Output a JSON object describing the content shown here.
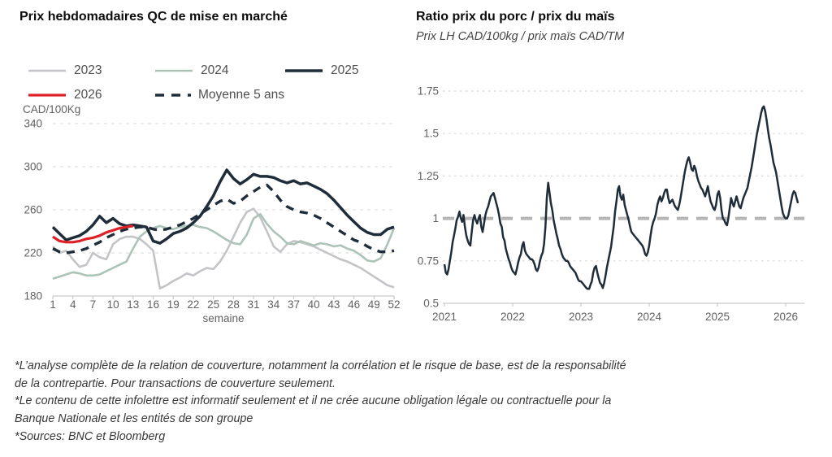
{
  "page": {
    "background": "#ffffff"
  },
  "footnotes": {
    "text": "*L’analyse complète de la relation de couverture, notamment la corrélation et le risque de base, est de la responsabilité\nde la contrepartie. Pour transactions de couverture seulement.\n*Le contenu de cette infolettre est informatif seulement et il ne crée aucune obligation légale ou contractuelle pour la\nBanque Nationale et les entités de son groupe\n*Sources: BNC et Bloomberg"
  },
  "chart_data": [
    {
      "type": "line",
      "title": "Prix hebdomadaires QC de mise en marché",
      "ylabel": "CAD/100Kg",
      "xlabel": "semaine",
      "ylim": [
        180,
        340
      ],
      "xlim": [
        1,
        52
      ],
      "y_ticks": [
        340,
        300,
        260,
        220,
        180
      ],
      "y_gridlines_dashed": [
        340,
        300,
        260,
        220
      ],
      "x_ticks": [
        1,
        4,
        7,
        10,
        13,
        16,
        19,
        22,
        25,
        28,
        31,
        34,
        37,
        40,
        43,
        46,
        49,
        52
      ],
      "grid": "horizontal-dashed",
      "legend_position": "top",
      "series": [
        {
          "name": "2023",
          "color": "#c4c4c8",
          "style": "solid",
          "width": 2.6,
          "start_week": 1,
          "values": [
            226,
            220,
            222,
            214,
            207,
            209,
            220,
            216,
            214,
            228,
            233,
            235,
            235,
            233,
            228,
            222,
            187,
            190,
            194,
            197,
            201,
            199,
            203,
            206,
            205,
            212,
            222,
            235,
            248,
            258,
            261,
            253,
            240,
            226,
            221,
            228,
            231,
            230,
            228,
            226,
            223,
            220,
            217,
            214,
            212,
            209,
            206,
            202,
            198,
            194,
            190,
            188
          ]
        },
        {
          "name": "2024",
          "color": "#abc4b7",
          "style": "solid",
          "width": 2.6,
          "start_week": 1,
          "values": [
            196,
            198,
            200,
            202,
            201,
            199,
            199,
            200,
            203,
            206,
            209,
            212,
            224,
            235,
            240,
            243,
            245,
            243,
            242,
            244,
            245,
            246,
            244,
            243,
            240,
            236,
            232,
            229,
            228,
            237,
            252,
            256,
            247,
            240,
            235,
            229,
            228,
            231,
            229,
            227,
            229,
            228,
            226,
            227,
            224,
            222,
            218,
            213,
            212,
            215,
            228,
            243
          ]
        },
        {
          "name": "2025",
          "color": "#1f2d3a",
          "style": "solid",
          "width": 3.5,
          "start_week": 1,
          "values": [
            244,
            238,
            232,
            234,
            236,
            240,
            246,
            254,
            248,
            252,
            247,
            245,
            246,
            245,
            244,
            231,
            229,
            233,
            238,
            240,
            243,
            248,
            254,
            263,
            273,
            286,
            297,
            289,
            284,
            288,
            293,
            291,
            291,
            290,
            287,
            285,
            287,
            284,
            285,
            282,
            279,
            275,
            269,
            262,
            255,
            249,
            243,
            239,
            237,
            237,
            242,
            244
          ]
        },
        {
          "name": "2026",
          "color": "#dd2127",
          "style": "solid",
          "width": 3.2,
          "start_week": 1,
          "values": [
            235,
            231,
            230,
            230,
            231,
            233,
            234,
            236,
            239,
            241,
            243,
            244,
            245
          ]
        },
        {
          "name": "Moyenne 5 ans",
          "color": "#1f2d3a",
          "style": "dashed",
          "width": 3.4,
          "start_week": 1,
          "values": [
            224,
            221,
            220,
            221,
            222,
            224,
            227,
            230,
            234,
            237,
            240,
            242,
            243,
            244,
            244,
            242,
            241,
            242,
            244,
            246,
            249,
            252,
            256,
            260,
            264,
            268,
            270,
            266,
            268,
            273,
            277,
            281,
            283,
            277,
            269,
            263,
            260,
            258,
            257,
            255,
            252,
            248,
            244,
            240,
            236,
            232,
            230,
            226,
            223,
            221,
            221,
            222
          ]
        }
      ]
    },
    {
      "type": "line",
      "title": "Ratio prix du porc / prix du maïs",
      "subtitle": "Prix LH CAD/100kg / prix maïs CAD/TM",
      "ylim": [
        0.5,
        1.75
      ],
      "y_ticks": [
        1.75,
        1.5,
        1.25,
        1,
        0.75,
        0.5
      ],
      "y_tick_labels": [
        "1.75",
        "1.5",
        "1.25",
        "1",
        "0.75",
        "0.5"
      ],
      "y_gridlines_dashed": [
        1.75,
        1.5,
        1.25,
        0.75
      ],
      "x_ticks": [
        2021,
        2022,
        2023,
        2024,
        2025,
        2026
      ],
      "reference_line": {
        "y": 1,
        "color": "#b5b5b5",
        "style": "dashed",
        "width": 4
      },
      "grid": "horizontal-dashed",
      "series": [
        {
          "name": "Ratio porc/maïs",
          "color": "#1f2d3a",
          "style": "solid",
          "width": 2.5,
          "x_start": 2021,
          "x_step": 0.02,
          "values": [
            0.73,
            0.68,
            0.67,
            0.7,
            0.75,
            0.8,
            0.86,
            0.9,
            0.94,
            0.99,
            1.01,
            1.04,
            1.0,
            0.98,
            1.02,
            0.95,
            0.9,
            0.87,
            0.85,
            0.84,
            0.92,
            0.99,
            1.02,
            0.99,
            0.97,
            1.0,
            1.02,
            0.95,
            0.92,
            0.97,
            1.02,
            1.05,
            1.07,
            1.1,
            1.13,
            1.14,
            1.15,
            1.12,
            1.09,
            1.06,
            1.02,
            0.97,
            0.95,
            0.89,
            0.87,
            0.82,
            0.79,
            0.76,
            0.74,
            0.71,
            0.69,
            0.68,
            0.67,
            0.7,
            0.74,
            0.77,
            0.79,
            0.84,
            0.86,
            0.81,
            0.79,
            0.78,
            0.77,
            0.76,
            0.76,
            0.75,
            0.73,
            0.7,
            0.69,
            0.71,
            0.75,
            0.78,
            0.8,
            0.85,
            0.95,
            1.12,
            1.21,
            1.15,
            1.09,
            1.05,
            0.99,
            0.95,
            0.91,
            0.88,
            0.84,
            0.82,
            0.79,
            0.77,
            0.76,
            0.75,
            0.75,
            0.74,
            0.72,
            0.71,
            0.7,
            0.69,
            0.68,
            0.66,
            0.64,
            0.63,
            0.63,
            0.62,
            0.61,
            0.6,
            0.59,
            0.585,
            0.585,
            0.61,
            0.63,
            0.68,
            0.71,
            0.72,
            0.68,
            0.65,
            0.62,
            0.61,
            0.59,
            0.62,
            0.66,
            0.71,
            0.75,
            0.79,
            0.83,
            0.89,
            0.95,
            1.04,
            1.1,
            1.17,
            1.19,
            1.13,
            1.11,
            1.14,
            1.08,
            1.05,
            1.02,
            0.99,
            0.95,
            0.92,
            0.91,
            0.9,
            0.89,
            0.88,
            0.87,
            0.86,
            0.85,
            0.84,
            0.82,
            0.79,
            0.78,
            0.8,
            0.84,
            0.9,
            0.95,
            0.98,
            1.0,
            1.03,
            1.08,
            1.11,
            1.13,
            1.1,
            1.12,
            1.15,
            1.17,
            1.17,
            1.12,
            1.09,
            1.1,
            1.11,
            1.09,
            1.07,
            1.06,
            1.05,
            1.08,
            1.12,
            1.17,
            1.22,
            1.27,
            1.31,
            1.34,
            1.36,
            1.33,
            1.29,
            1.28,
            1.31,
            1.29,
            1.25,
            1.22,
            1.2,
            1.18,
            1.17,
            1.15,
            1.13,
            1.16,
            1.19,
            1.14,
            1.1,
            1.08,
            1.06,
            1.05,
            1.08,
            1.14,
            1.16,
            1.12,
            1.05,
            1.0,
            0.99,
            0.97,
            0.96,
            1.0,
            1.06,
            1.12,
            1.09,
            1.07,
            1.1,
            1.13,
            1.1,
            1.07,
            1.06,
            1.09,
            1.12,
            1.14,
            1.16,
            1.18,
            1.22,
            1.26,
            1.3,
            1.35,
            1.4,
            1.45,
            1.5,
            1.54,
            1.58,
            1.62,
            1.65,
            1.66,
            1.63,
            1.58,
            1.52,
            1.47,
            1.43,
            1.38,
            1.33,
            1.3,
            1.27,
            1.22,
            1.17,
            1.12,
            1.07,
            1.03,
            1.01,
            1.0,
            1.0,
            1.02,
            1.06,
            1.1,
            1.14,
            1.16,
            1.15,
            1.12,
            1.09
          ]
        }
      ]
    }
  ]
}
